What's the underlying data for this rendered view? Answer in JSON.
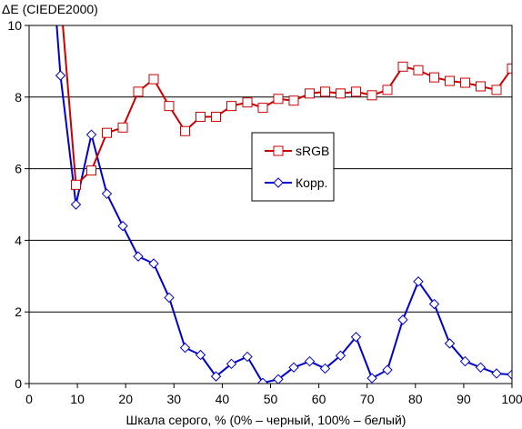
{
  "chart_data": {
    "type": "line",
    "ylabel": "ΔE (CIEDE2000)",
    "xlabel": "Шкала серого, % (0% – черный, 100% – белый)",
    "xlim": [
      0,
      100
    ],
    "ylim": [
      0,
      10
    ],
    "x_ticks": [
      "0",
      "10",
      "20",
      "30",
      "40",
      "50",
      "60",
      "70",
      "80",
      "90",
      "100"
    ],
    "y_ticks": [
      "0",
      "2",
      "4",
      "6",
      "8",
      "10"
    ],
    "grid": "horizontal",
    "legend_position": "center-right",
    "series": [
      {
        "name": "sRGB",
        "color": "#cc0000",
        "marker": "square",
        "points": [
          [
            6.5,
            10.8
          ],
          [
            9.7,
            5.55
          ],
          [
            12.9,
            5.95
          ],
          [
            16.1,
            7.0
          ],
          [
            19.4,
            7.15
          ],
          [
            22.6,
            8.15
          ],
          [
            25.8,
            8.5
          ],
          [
            29.0,
            7.75
          ],
          [
            32.3,
            7.05
          ],
          [
            35.5,
            7.45
          ],
          [
            38.7,
            7.45
          ],
          [
            41.9,
            7.75
          ],
          [
            45.2,
            7.85
          ],
          [
            48.4,
            7.7
          ],
          [
            51.6,
            7.95
          ],
          [
            54.8,
            7.9
          ],
          [
            58.1,
            8.1
          ],
          [
            61.3,
            8.15
          ],
          [
            64.5,
            8.1
          ],
          [
            67.7,
            8.15
          ],
          [
            71.0,
            8.05
          ],
          [
            74.2,
            8.2
          ],
          [
            77.4,
            8.85
          ],
          [
            80.6,
            8.75
          ],
          [
            83.9,
            8.55
          ],
          [
            87.1,
            8.45
          ],
          [
            90.3,
            8.4
          ],
          [
            93.5,
            8.3
          ],
          [
            96.8,
            8.2
          ],
          [
            100.0,
            8.8
          ]
        ]
      },
      {
        "name": "Корр.",
        "color": "#0000cc",
        "marker": "diamond",
        "points": [
          [
            3.2,
            14.5
          ],
          [
            6.5,
            8.6
          ],
          [
            9.7,
            5.0
          ],
          [
            12.9,
            6.95
          ],
          [
            16.1,
            5.3
          ],
          [
            19.4,
            4.4
          ],
          [
            22.6,
            3.55
          ],
          [
            25.8,
            3.35
          ],
          [
            29.0,
            2.4
          ],
          [
            32.3,
            1.0
          ],
          [
            35.5,
            0.8
          ],
          [
            38.7,
            0.2
          ],
          [
            41.9,
            0.55
          ],
          [
            45.2,
            0.75
          ],
          [
            48.4,
            0.02
          ],
          [
            51.6,
            0.12
          ],
          [
            54.8,
            0.45
          ],
          [
            58.1,
            0.62
          ],
          [
            61.3,
            0.42
          ],
          [
            64.5,
            0.78
          ],
          [
            67.7,
            1.3
          ],
          [
            71.0,
            0.15
          ],
          [
            74.2,
            0.38
          ],
          [
            77.4,
            1.78
          ],
          [
            80.6,
            2.85
          ],
          [
            83.9,
            2.22
          ],
          [
            87.1,
            1.12
          ],
          [
            90.3,
            0.62
          ],
          [
            93.5,
            0.45
          ],
          [
            96.8,
            0.28
          ],
          [
            100.0,
            0.25
          ]
        ]
      }
    ]
  }
}
